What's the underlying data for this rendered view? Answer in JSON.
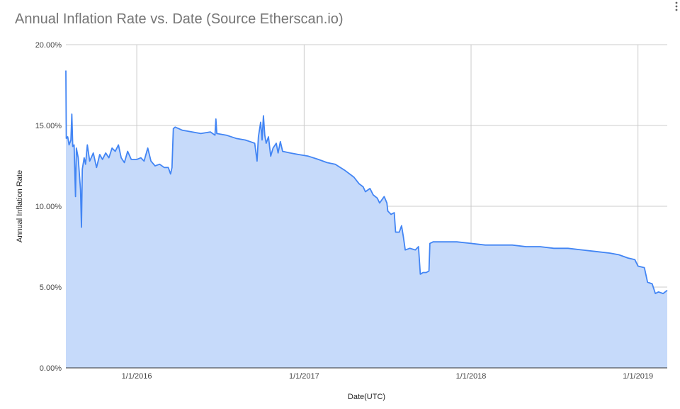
{
  "title": "Annual Inflation Rate vs. Date (Source Etherscan.io)",
  "menu_icon": "kebab-vertical-icon",
  "colors": {
    "line": "#4285f4",
    "area": "#c6dafa",
    "grid": "#cccccc",
    "axis": "#333333"
  },
  "chart_data": {
    "type": "area",
    "title": "Annual Inflation Rate vs. Date (Source Etherscan.io)",
    "xlabel": "Date(UTC)",
    "ylabel": "Annual Inflation Rate",
    "ylim": [
      0,
      20
    ],
    "xlim": [
      "2015-07-30",
      "2019-03-06"
    ],
    "yticks": [
      "0.00%",
      "5.00%",
      "10.00%",
      "15.00%",
      "20.00%"
    ],
    "ytick_values": [
      0,
      5,
      10,
      15,
      20
    ],
    "xticks": [
      "1/1/2016",
      "1/1/2017",
      "1/1/2018",
      "1/1/2019"
    ],
    "xtick_dates": [
      "2016-01-01",
      "2017-01-01",
      "2018-01-01",
      "2019-01-01"
    ],
    "grid": true,
    "legend": "none",
    "series": [
      {
        "values": [
          [
            "2015-07-30",
            18.4
          ],
          [
            "2015-07-31",
            14.2
          ],
          [
            "2015-08-03",
            14.3
          ],
          [
            "2015-08-06",
            13.8
          ],
          [
            "2015-08-10",
            14.1
          ],
          [
            "2015-08-12",
            15.7
          ],
          [
            "2015-08-14",
            13.7
          ],
          [
            "2015-08-17",
            13.8
          ],
          [
            "2015-08-20",
            10.6
          ],
          [
            "2015-08-22",
            13.6
          ],
          [
            "2015-08-26",
            13.0
          ],
          [
            "2015-08-31",
            11.0
          ],
          [
            "2015-09-02",
            8.7
          ],
          [
            "2015-09-04",
            12.3
          ],
          [
            "2015-09-08",
            13.0
          ],
          [
            "2015-09-11",
            12.6
          ],
          [
            "2015-09-15",
            13.8
          ],
          [
            "2015-09-20",
            12.8
          ],
          [
            "2015-09-25",
            13.1
          ],
          [
            "2015-09-28",
            13.3
          ],
          [
            "2015-10-05",
            12.4
          ],
          [
            "2015-10-12",
            13.2
          ],
          [
            "2015-10-18",
            12.9
          ],
          [
            "2015-10-25",
            13.3
          ],
          [
            "2015-11-01",
            13.0
          ],
          [
            "2015-11-08",
            13.6
          ],
          [
            "2015-11-15",
            13.4
          ],
          [
            "2015-11-22",
            13.8
          ],
          [
            "2015-11-28",
            13.0
          ],
          [
            "2015-12-05",
            12.7
          ],
          [
            "2015-12-12",
            13.4
          ],
          [
            "2015-12-20",
            12.9
          ],
          [
            "2016-01-01",
            12.9
          ],
          [
            "2016-01-10",
            13.0
          ],
          [
            "2016-01-17",
            12.8
          ],
          [
            "2016-01-25",
            13.6
          ],
          [
            "2016-02-01",
            12.8
          ],
          [
            "2016-02-10",
            12.5
          ],
          [
            "2016-02-20",
            12.6
          ],
          [
            "2016-03-01",
            12.4
          ],
          [
            "2016-03-10",
            12.4
          ],
          [
            "2016-03-15",
            12.0
          ],
          [
            "2016-03-18",
            12.4
          ],
          [
            "2016-03-21",
            14.8
          ],
          [
            "2016-03-25",
            14.9
          ],
          [
            "2016-04-10",
            14.7
          ],
          [
            "2016-05-01",
            14.6
          ],
          [
            "2016-05-20",
            14.5
          ],
          [
            "2016-06-10",
            14.6
          ],
          [
            "2016-06-20",
            14.4
          ],
          [
            "2016-06-22",
            15.4
          ],
          [
            "2016-06-24",
            14.5
          ],
          [
            "2016-07-15",
            14.4
          ],
          [
            "2016-08-05",
            14.2
          ],
          [
            "2016-08-25",
            14.1
          ],
          [
            "2016-09-05",
            14.0
          ],
          [
            "2016-09-15",
            13.9
          ],
          [
            "2016-09-20",
            12.8
          ],
          [
            "2016-09-23",
            14.3
          ],
          [
            "2016-09-28",
            15.2
          ],
          [
            "2016-10-01",
            14.1
          ],
          [
            "2016-10-04",
            15.6
          ],
          [
            "2016-10-07",
            14.4
          ],
          [
            "2016-10-10",
            13.9
          ],
          [
            "2016-10-15",
            14.3
          ],
          [
            "2016-10-20",
            13.1
          ],
          [
            "2016-10-25",
            13.6
          ],
          [
            "2016-11-01",
            13.9
          ],
          [
            "2016-11-05",
            13.3
          ],
          [
            "2016-11-10",
            14.0
          ],
          [
            "2016-11-15",
            13.4
          ],
          [
            "2016-12-01",
            13.3
          ],
          [
            "2016-12-20",
            13.2
          ],
          [
            "2017-01-10",
            13.1
          ],
          [
            "2017-02-01",
            12.9
          ],
          [
            "2017-02-20",
            12.7
          ],
          [
            "2017-03-10",
            12.6
          ],
          [
            "2017-04-01",
            12.2
          ],
          [
            "2017-04-20",
            11.8
          ],
          [
            "2017-05-01",
            11.4
          ],
          [
            "2017-05-10",
            11.2
          ],
          [
            "2017-05-15",
            10.9
          ],
          [
            "2017-05-25",
            11.1
          ],
          [
            "2017-06-01",
            10.7
          ],
          [
            "2017-06-10",
            10.5
          ],
          [
            "2017-06-15",
            10.2
          ],
          [
            "2017-06-25",
            10.6
          ],
          [
            "2017-07-01",
            10.2
          ],
          [
            "2017-07-03",
            9.7
          ],
          [
            "2017-07-10",
            9.5
          ],
          [
            "2017-07-17",
            9.6
          ],
          [
            "2017-07-20",
            8.4
          ],
          [
            "2017-07-28",
            8.4
          ],
          [
            "2017-08-02",
            8.8
          ],
          [
            "2017-08-06",
            8.1
          ],
          [
            "2017-08-10",
            7.3
          ],
          [
            "2017-08-20",
            7.4
          ],
          [
            "2017-09-01",
            7.3
          ],
          [
            "2017-09-08",
            7.5
          ],
          [
            "2017-09-12",
            5.8
          ],
          [
            "2017-09-18",
            5.9
          ],
          [
            "2017-09-25",
            5.9
          ],
          [
            "2017-10-01",
            6.0
          ],
          [
            "2017-10-03",
            7.7
          ],
          [
            "2017-10-10",
            7.8
          ],
          [
            "2017-11-01",
            7.8
          ],
          [
            "2017-12-01",
            7.8
          ],
          [
            "2018-01-01",
            7.7
          ],
          [
            "2018-02-01",
            7.6
          ],
          [
            "2018-03-01",
            7.6
          ],
          [
            "2018-04-01",
            7.6
          ],
          [
            "2018-05-01",
            7.5
          ],
          [
            "2018-06-01",
            7.5
          ],
          [
            "2018-07-01",
            7.4
          ],
          [
            "2018-08-01",
            7.4
          ],
          [
            "2018-09-01",
            7.3
          ],
          [
            "2018-10-01",
            7.2
          ],
          [
            "2018-11-01",
            7.1
          ],
          [
            "2018-11-20",
            7.0
          ],
          [
            "2018-12-10",
            6.8
          ],
          [
            "2018-12-25",
            6.7
          ],
          [
            "2019-01-01",
            6.3
          ],
          [
            "2019-01-15",
            6.2
          ],
          [
            "2019-01-22",
            5.3
          ],
          [
            "2019-02-01",
            5.2
          ],
          [
            "2019-02-08",
            4.6
          ],
          [
            "2019-02-15",
            4.7
          ],
          [
            "2019-02-25",
            4.6
          ],
          [
            "2019-03-06",
            4.8
          ]
        ]
      }
    ]
  }
}
